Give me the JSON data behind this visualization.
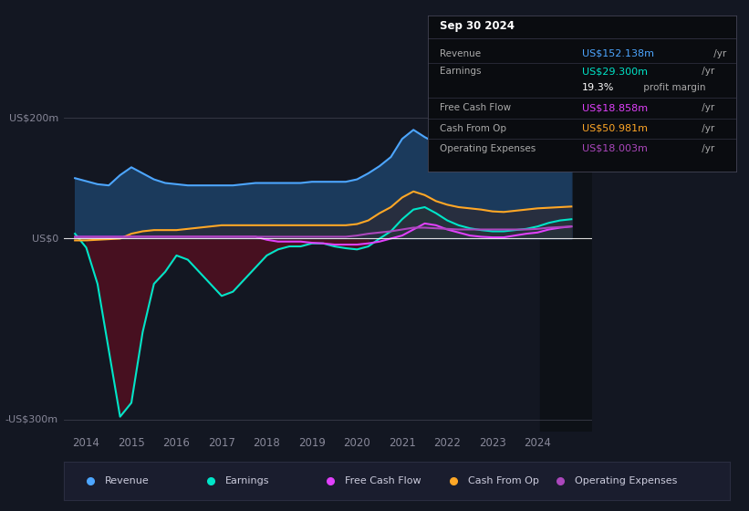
{
  "bg_color": "#131722",
  "chart_bg": "#131722",
  "title": "Sep 30 2024",
  "info_rows": [
    {
      "label": "Revenue",
      "value": "US$152.138m",
      "suffix": " /yr",
      "color": "#4da6ff"
    },
    {
      "label": "Earnings",
      "value": "US$29.300m",
      "suffix": " /yr",
      "color": "#00e5c8"
    },
    {
      "label": "",
      "value": "19.3%",
      "suffix": " profit margin",
      "color": "#ffffff"
    },
    {
      "label": "Free Cash Flow",
      "value": "US$18.858m",
      "suffix": " /yr",
      "color": "#e040fb"
    },
    {
      "label": "Cash From Op",
      "value": "US$50.981m",
      "suffix": " /yr",
      "color": "#ffa726"
    },
    {
      "label": "Operating Expenses",
      "value": "US$18.003m",
      "suffix": " /yr",
      "color": "#ab47bc"
    }
  ],
  "ylabel_top": "US$200m",
  "ylabel_zero": "US$0",
  "ylabel_bottom": "-US$300m",
  "ylim": [
    -320,
    230
  ],
  "legend": [
    {
      "label": "Revenue",
      "color": "#4da6ff"
    },
    {
      "label": "Earnings",
      "color": "#00e5c8"
    },
    {
      "label": "Free Cash Flow",
      "color": "#e040fb"
    },
    {
      "label": "Cash From Op",
      "color": "#ffa726"
    },
    {
      "label": "Operating Expenses",
      "color": "#ab47bc"
    }
  ],
  "xticks": [
    2014,
    2015,
    2016,
    2017,
    2018,
    2019,
    2020,
    2021,
    2022,
    2023,
    2024
  ],
  "xlim": [
    2013.5,
    2025.2
  ],
  "zero_line_y": 0,
  "revenue_line_color": "#4da6ff",
  "earnings_line_color": "#00e5c8",
  "fcf_line_color": "#e040fb",
  "cfo_line_color": "#ffa726",
  "opex_line_color": "#ab47bc",
  "revenue_fill_color": "#1b3a5c",
  "earnings_pos_fill": "#1a4a40",
  "earnings_neg_fill": "#4a1020",
  "cfo_fill_color": "#2a2d3a",
  "dark_panel_color": "#0d1117",
  "x_years": [
    2013.75,
    2014.0,
    2014.25,
    2014.5,
    2014.75,
    2015.0,
    2015.25,
    2015.5,
    2015.75,
    2016.0,
    2016.25,
    2016.5,
    2016.75,
    2017.0,
    2017.25,
    2017.5,
    2017.75,
    2018.0,
    2018.25,
    2018.5,
    2018.75,
    2019.0,
    2019.25,
    2019.5,
    2019.75,
    2020.0,
    2020.25,
    2020.5,
    2020.75,
    2021.0,
    2021.25,
    2021.5,
    2021.75,
    2022.0,
    2022.25,
    2022.5,
    2022.75,
    2023.0,
    2023.25,
    2023.5,
    2023.75,
    2024.0,
    2024.25,
    2024.5,
    2024.75
  ],
  "revenue": [
    100,
    95,
    90,
    88,
    105,
    118,
    108,
    98,
    92,
    90,
    88,
    88,
    88,
    88,
    88,
    90,
    92,
    92,
    92,
    92,
    92,
    94,
    94,
    94,
    94,
    98,
    108,
    120,
    135,
    165,
    180,
    168,
    158,
    152,
    150,
    147,
    145,
    143,
    141,
    143,
    146,
    149,
    152,
    153,
    155
  ],
  "earnings": [
    8,
    -15,
    -75,
    -185,
    -295,
    -272,
    -155,
    -75,
    -55,
    -28,
    -35,
    -55,
    -75,
    -95,
    -88,
    -68,
    -48,
    -28,
    -18,
    -13,
    -13,
    -8,
    -8,
    -13,
    -16,
    -18,
    -13,
    0,
    12,
    32,
    48,
    52,
    42,
    30,
    22,
    17,
    14,
    12,
    12,
    14,
    16,
    20,
    26,
    30,
    32
  ],
  "free_cash_flow": [
    3,
    3,
    3,
    3,
    3,
    3,
    3,
    3,
    3,
    3,
    3,
    3,
    3,
    3,
    3,
    3,
    3,
    -2,
    -5,
    -5,
    -5,
    -7,
    -8,
    -10,
    -10,
    -10,
    -8,
    -5,
    0,
    5,
    15,
    25,
    22,
    15,
    10,
    5,
    3,
    2,
    2,
    5,
    8,
    10,
    15,
    18,
    20
  ],
  "cash_from_op": [
    -3,
    -3,
    -2,
    -1,
    0,
    8,
    12,
    14,
    14,
    14,
    16,
    18,
    20,
    22,
    22,
    22,
    22,
    22,
    22,
    22,
    22,
    22,
    22,
    22,
    22,
    24,
    30,
    42,
    52,
    68,
    78,
    72,
    62,
    56,
    52,
    50,
    48,
    45,
    44,
    46,
    48,
    50,
    51,
    52,
    53
  ],
  "operating_exp": [
    2,
    2,
    2,
    2,
    2,
    3,
    3,
    3,
    3,
    3,
    3,
    3,
    3,
    3,
    3,
    3,
    3,
    3,
    3,
    3,
    3,
    3,
    3,
    3,
    3,
    5,
    8,
    10,
    12,
    15,
    18,
    18,
    17,
    16,
    15,
    15,
    15,
    15,
    15,
    15,
    15,
    16,
    18,
    19,
    20
  ]
}
